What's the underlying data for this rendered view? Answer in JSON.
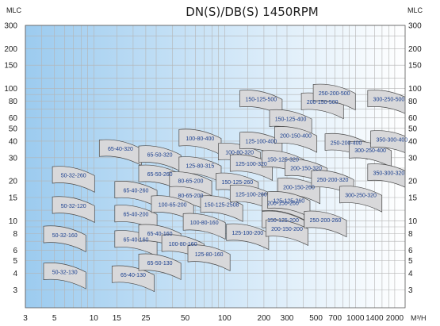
{
  "chart_data": {
    "type": "pump-selection-chart",
    "title": "DN(S)/DB(S)  1450RPM",
    "ylabel_left": "MLC",
    "ylabel_right": "MLC",
    "xlabel": "M³/H",
    "x_scale": "log",
    "y_scale": "log",
    "xlim": [
      3,
      2400
    ],
    "ylim": [
      2.2,
      300
    ],
    "grid": true,
    "x_ticks": [
      3,
      5,
      10,
      15,
      25,
      50,
      100,
      200,
      300,
      500,
      700,
      1000,
      1400,
      2000
    ],
    "y_ticks": [
      3,
      4,
      5,
      6,
      8,
      10,
      15,
      20,
      30,
      40,
      50,
      60,
      80,
      100,
      150,
      200,
      300
    ],
    "colors": {
      "background_left": "#9ccbef",
      "background_right": "#ffffff",
      "zone_fill": "#d8d8da",
      "zone_stroke": "#4a4a4a",
      "label_color": "#1a3f8f",
      "grid": "#b4b4b4"
    },
    "zones": [
      {
        "label": "65-40-320",
        "x": 16,
        "y": 35
      },
      {
        "label": "50-32-260",
        "x": 7,
        "y": 22
      },
      {
        "label": "50-32-120",
        "x": 7,
        "y": 13
      },
      {
        "label": "50-32-160",
        "x": 6,
        "y": 7.8
      },
      {
        "label": "50-32-130",
        "x": 6,
        "y": 4.1
      },
      {
        "label": "65-50-320",
        "x": 32,
        "y": 31.5
      },
      {
        "label": "65-50-260",
        "x": 32,
        "y": 22.5
      },
      {
        "label": "65-40-260",
        "x": 21,
        "y": 17
      },
      {
        "label": "65-40-200",
        "x": 21,
        "y": 11.2
      },
      {
        "label": "65-40-160",
        "x": 21,
        "y": 7.2
      },
      {
        "label": "65-40-130",
        "x": 20,
        "y": 3.9
      },
      {
        "label": "65-40-160",
        "x": 32,
        "y": 8
      },
      {
        "label": "65-50-130",
        "x": 32,
        "y": 4.8
      },
      {
        "label": "100-80-400",
        "x": 65,
        "y": 42
      },
      {
        "label": "125-80-315",
        "x": 65,
        "y": 26
      },
      {
        "label": "80-65-200",
        "x": 55,
        "y": 20
      },
      {
        "label": "80-65-200",
        "x": 55,
        "y": 15.5
      },
      {
        "label": "100-65-200",
        "x": 40,
        "y": 13.2
      },
      {
        "label": "100-80-160",
        "x": 70,
        "y": 9.7
      },
      {
        "label": "100-80-160",
        "x": 48,
        "y": 6.7
      },
      {
        "label": "125-80-160",
        "x": 76,
        "y": 5.6
      },
      {
        "label": "100-80-320",
        "x": 130,
        "y": 33
      },
      {
        "label": "150-125-260",
        "x": 125,
        "y": 19.6
      },
      {
        "label": "150-125-2508",
        "x": 95,
        "y": 13.2
      },
      {
        "label": "125-100-260",
        "x": 160,
        "y": 15.9
      },
      {
        "label": "125-100-200",
        "x": 150,
        "y": 8.1
      },
      {
        "label": "150-125-500",
        "x": 190,
        "y": 83
      },
      {
        "label": "150-125-400",
        "x": 320,
        "y": 59
      },
      {
        "label": "125-100-400",
        "x": 190,
        "y": 40
      },
      {
        "label": "125-100-320",
        "x": 160,
        "y": 27
      },
      {
        "label": "150-125-320",
        "x": 280,
        "y": 29
      },
      {
        "label": "150-125-200",
        "x": 280,
        "y": 10.1
      },
      {
        "label": "200-150-260",
        "x": 280,
        "y": 13.6
      },
      {
        "label": "200-150-320",
        "x": 420,
        "y": 25
      },
      {
        "label": "200-150-260",
        "x": 370,
        "y": 18
      },
      {
        "label": "125-125-260",
        "x": 310,
        "y": 14.2
      },
      {
        "label": "200-150-200",
        "x": 300,
        "y": 8.7
      },
      {
        "label": "200-150-400",
        "x": 350,
        "y": 44
      },
      {
        "label": "200-150-500",
        "x": 560,
        "y": 79
      },
      {
        "label": "250-200-500",
        "x": 690,
        "y": 92
      },
      {
        "label": "250-200-400",
        "x": 850,
        "y": 39
      },
      {
        "label": "250-200-320",
        "x": 670,
        "y": 20.5
      },
      {
        "label": "250-200-260",
        "x": 590,
        "y": 10.1
      },
      {
        "label": "300-250-320",
        "x": 1100,
        "y": 15.6
      },
      {
        "label": "300-250-400",
        "x": 1300,
        "y": 34
      },
      {
        "label": "300-250-500",
        "x": 1800,
        "y": 83
      },
      {
        "label": "350-300-400",
        "x": 1900,
        "y": 41
      },
      {
        "label": "350-300-320",
        "x": 1800,
        "y": 23
      }
    ]
  }
}
